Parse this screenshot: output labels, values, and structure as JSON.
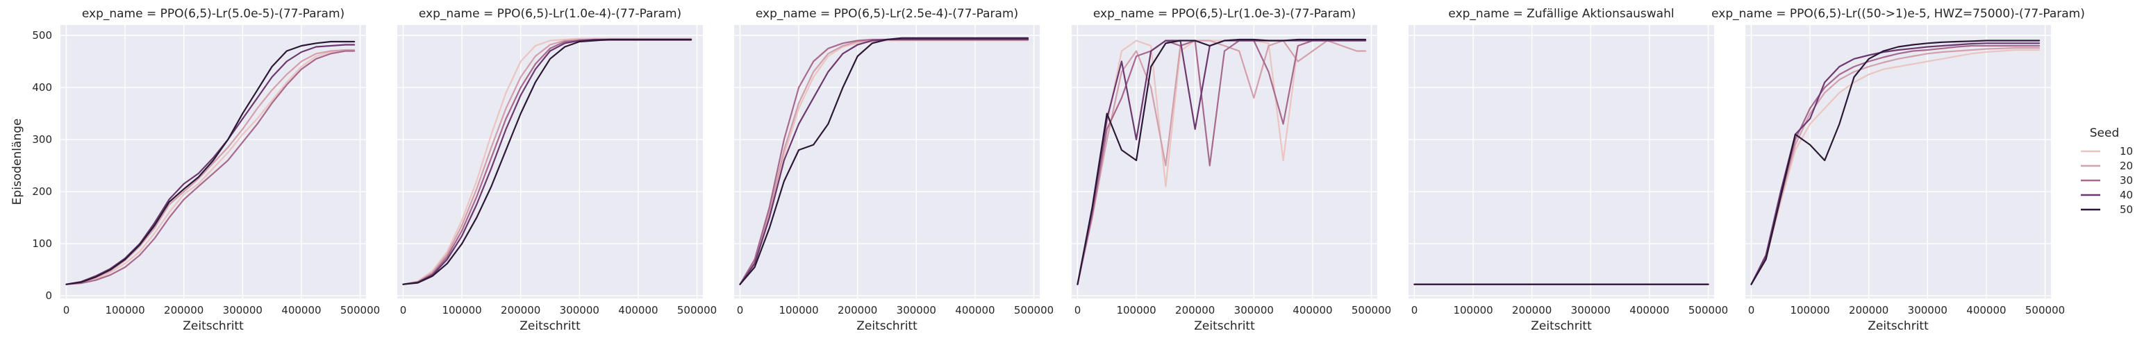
{
  "chart_data": {
    "type": "line",
    "layout": "facet-row",
    "grid": true,
    "legend_placement": "right",
    "xlabel": "Zeitschritt",
    "ylabel": "Episodenlänge",
    "xlim": [
      -10000,
      510000
    ],
    "ylim": [
      -5,
      520
    ],
    "xticks": [
      0,
      100000,
      200000,
      300000,
      400000,
      500000
    ],
    "yticks": [
      0,
      100,
      200,
      300,
      400,
      500
    ],
    "legend": {
      "title": "Seed",
      "entries": [
        {
          "label": "10",
          "color": "#ebc5c2"
        },
        {
          "label": "20",
          "color": "#d2a0ad"
        },
        {
          "label": "30",
          "color": "#a8698e"
        },
        {
          "label": "40",
          "color": "#6c3870"
        },
        {
          "label": "50",
          "color": "#2b1836"
        }
      ]
    },
    "panels": [
      {
        "title": "exp_name = PPO(6,5)-Lr(5.0e-5)-(77-Param)",
        "x": [
          0,
          25000,
          50000,
          75000,
          100000,
          125000,
          150000,
          175000,
          200000,
          225000,
          250000,
          275000,
          300000,
          325000,
          350000,
          375000,
          400000,
          425000,
          450000,
          475000,
          490000
        ],
        "series": [
          {
            "name": "10",
            "values": [
              22,
              25,
              32,
              45,
              62,
              85,
              120,
              160,
              195,
              215,
              245,
              275,
              310,
              340,
              375,
              410,
              440,
              460,
              468,
              470,
              470
            ]
          },
          {
            "name": "20",
            "values": [
              22,
              26,
              35,
              48,
              68,
              95,
              130,
              175,
              200,
              225,
              255,
              285,
              320,
              360,
              395,
              425,
              450,
              465,
              470,
              472,
              472
            ]
          },
          {
            "name": "30",
            "values": [
              22,
              24,
              30,
              40,
              55,
              78,
              110,
              150,
              185,
              210,
              235,
              260,
              295,
              330,
              370,
              405,
              435,
              455,
              465,
              470,
              470
            ]
          },
          {
            "name": "40",
            "values": [
              22,
              27,
              38,
              52,
              72,
              100,
              140,
              185,
              215,
              235,
              265,
              300,
              340,
              380,
              420,
              450,
              468,
              478,
              480,
              482,
              482
            ]
          },
          {
            "name": "50",
            "values": [
              22,
              26,
              36,
              50,
              70,
              98,
              135,
              180,
              205,
              228,
              260,
              300,
              350,
              395,
              440,
              470,
              480,
              485,
              488,
              488,
              488
            ]
          }
        ]
      },
      {
        "title": "exp_name = PPO(6,5)-Lr(1.0e-4)-(77-Param)",
        "x": [
          0,
          25000,
          50000,
          75000,
          100000,
          125000,
          150000,
          175000,
          200000,
          225000,
          250000,
          275000,
          300000,
          325000,
          350000,
          375000,
          400000,
          425000,
          450000,
          475000,
          490000
        ],
        "series": [
          {
            "name": "10",
            "values": [
              22,
              28,
              48,
              85,
              145,
              220,
              310,
              390,
              450,
              480,
              490,
              492,
              494,
              494,
              494,
              494,
              494,
              494,
              494,
              494,
              494
            ]
          },
          {
            "name": "20",
            "values": [
              22,
              27,
              45,
              80,
              135,
              205,
              285,
              360,
              420,
              460,
              482,
              490,
              492,
              492,
              493,
              493,
              493,
              493,
              493,
              493,
              493
            ]
          },
          {
            "name": "30",
            "values": [
              22,
              26,
              42,
              75,
              125,
              190,
              265,
              340,
              400,
              445,
              475,
              488,
              490,
              491,
              491,
              491,
              491,
              491,
              491,
              491,
              491
            ]
          },
          {
            "name": "40",
            "values": [
              22,
              26,
              40,
              70,
              115,
              175,
              245,
              320,
              385,
              435,
              470,
              485,
              490,
              492,
              492,
              492,
              492,
              492,
              492,
              492,
              492
            ]
          },
          {
            "name": "50",
            "values": [
              22,
              25,
              38,
              62,
              100,
              150,
              210,
              280,
              350,
              410,
              455,
              478,
              488,
              490,
              492,
              492,
              492,
              492,
              492,
              492,
              492
            ]
          }
        ]
      },
      {
        "title": "exp_name = PPO(6,5)-Lr(2.5e-4)-(77-Param)",
        "x": [
          0,
          25000,
          50000,
          75000,
          100000,
          125000,
          150000,
          175000,
          200000,
          225000,
          250000,
          275000,
          300000,
          325000,
          350000,
          375000,
          400000,
          425000,
          450000,
          475000,
          490000
        ],
        "series": [
          {
            "name": "10",
            "values": [
              22,
              60,
              150,
              270,
              360,
              420,
              460,
              478,
              485,
              488,
              490,
              490,
              490,
              490,
              490,
              490,
              490,
              490,
              490,
              490,
              490
            ]
          },
          {
            "name": "20",
            "values": [
              22,
              65,
              160,
              280,
              370,
              430,
              465,
              480,
              488,
              490,
              492,
              492,
              492,
              492,
              492,
              492,
              492,
              492,
              492,
              492,
              492
            ]
          },
          {
            "name": "30",
            "values": [
              22,
              70,
              170,
              300,
              400,
              450,
              475,
              485,
              490,
              492,
              492,
              492,
              492,
              492,
              492,
              492,
              492,
              492,
              492,
              492,
              492
            ]
          },
          {
            "name": "40",
            "values": [
              22,
              62,
              150,
              260,
              330,
              380,
              430,
              465,
              482,
              490,
              492,
              492,
              492,
              492,
              492,
              492,
              492,
              492,
              492,
              492,
              492
            ]
          },
          {
            "name": "50",
            "values": [
              22,
              55,
              130,
              220,
              280,
              290,
              330,
              400,
              460,
              485,
              492,
              495,
              495,
              495,
              495,
              495,
              495,
              495,
              495,
              495,
              495
            ]
          }
        ]
      },
      {
        "title": "exp_name = PPO(6,5)-Lr(1.0e-3)-(77-Param)",
        "x": [
          0,
          25000,
          50000,
          75000,
          100000,
          125000,
          150000,
          175000,
          200000,
          225000,
          250000,
          275000,
          300000,
          325000,
          350000,
          375000,
          400000,
          425000,
          450000,
          475000,
          490000
        ],
        "series": [
          {
            "name": "10",
            "values": [
              22,
              160,
              330,
              470,
              490,
              480,
              210,
              470,
              490,
              490,
              490,
              490,
              490,
              485,
              260,
              480,
              490,
              490,
              490,
              490,
              490
            ]
          },
          {
            "name": "20",
            "values": [
              22,
              150,
              300,
              430,
              470,
              400,
              250,
              480,
              490,
              490,
              480,
              470,
              380,
              480,
              490,
              450,
              470,
              490,
              480,
              470,
              470
            ]
          },
          {
            "name": "30",
            "values": [
              22,
              155,
              320,
              380,
              460,
              470,
              490,
              480,
              490,
              250,
              470,
              490,
              490,
              430,
              330,
              480,
              490,
              490,
              490,
              490,
              490
            ]
          },
          {
            "name": "40",
            "values": [
              22,
              165,
              340,
              450,
              300,
              470,
              490,
              490,
              320,
              480,
              490,
              490,
              490,
              490,
              490,
              490,
              490,
              490,
              490,
              490,
              490
            ]
          },
          {
            "name": "50",
            "values": [
              22,
              170,
              350,
              280,
              260,
              440,
              485,
              490,
              490,
              480,
              490,
              492,
              492,
              490,
              490,
              492,
              492,
              492,
              492,
              492,
              492
            ]
          }
        ]
      },
      {
        "title": "exp_name = Zufällige Aktionsauswahl",
        "x": [
          0,
          25000,
          50000,
          75000,
          100000,
          125000,
          150000,
          175000,
          200000,
          225000,
          250000,
          275000,
          300000,
          325000,
          350000,
          375000,
          400000,
          425000,
          450000,
          475000,
          500000
        ],
        "series": [
          {
            "name": "10",
            "values": [
              22,
              22,
              22,
              22,
              22,
              22,
              22,
              22,
              22,
              22,
              22,
              22,
              22,
              22,
              22,
              22,
              22,
              22,
              22,
              22,
              22
            ]
          },
          {
            "name": "20",
            "values": [
              22,
              22,
              22,
              22,
              22,
              22,
              22,
              22,
              22,
              22,
              22,
              22,
              22,
              22,
              22,
              22,
              22,
              22,
              22,
              22,
              22
            ]
          },
          {
            "name": "30",
            "values": [
              22,
              22,
              22,
              22,
              22,
              22,
              22,
              22,
              22,
              22,
              22,
              22,
              22,
              22,
              22,
              22,
              22,
              22,
              22,
              22,
              22
            ]
          },
          {
            "name": "40",
            "values": [
              22,
              22,
              22,
              22,
              22,
              22,
              22,
              22,
              22,
              22,
              22,
              22,
              22,
              22,
              22,
              22,
              22,
              22,
              22,
              22,
              22
            ]
          },
          {
            "name": "50",
            "values": [
              22,
              22,
              22,
              22,
              22,
              22,
              22,
              22,
              22,
              22,
              22,
              22,
              22,
              22,
              22,
              22,
              22,
              22,
              22,
              22,
              22
            ]
          }
        ]
      },
      {
        "title": "exp_name = PPO(6,5)-Lr((50->1)e-5, HWZ=75000)-(77-Param)",
        "x": [
          0,
          25000,
          50000,
          75000,
          100000,
          125000,
          150000,
          175000,
          200000,
          225000,
          250000,
          275000,
          300000,
          325000,
          350000,
          375000,
          400000,
          425000,
          450000,
          475000,
          490000
        ],
        "series": [
          {
            "name": "10",
            "values": [
              22,
              70,
              180,
              280,
              330,
              360,
              390,
              410,
              425,
              435,
              440,
              445,
              450,
              455,
              460,
              465,
              468,
              470,
              472,
              472,
              472
            ]
          },
          {
            "name": "20",
            "values": [
              22,
              72,
              185,
              290,
              350,
              390,
              415,
              430,
              440,
              448,
              455,
              460,
              465,
              468,
              470,
              472,
              474,
              475,
              476,
              476,
              476
            ]
          },
          {
            "name": "30",
            "values": [
              22,
              75,
              190,
              300,
              360,
              400,
              425,
              440,
              450,
              458,
              465,
              470,
              472,
              475,
              478,
              480,
              480,
              480,
              480,
              480,
              480
            ]
          },
          {
            "name": "40",
            "values": [
              22,
              78,
              200,
              310,
              340,
              410,
              440,
              455,
              462,
              468,
              472,
              475,
              478,
              480,
              482,
              484,
              485,
              485,
              485,
              485,
              485
            ]
          },
          {
            "name": "50",
            "values": [
              22,
              70,
              190,
              310,
              290,
              260,
              330,
              420,
              455,
              470,
              478,
              482,
              485,
              487,
              488,
              489,
              490,
              490,
              490,
              490,
              490
            ]
          }
        ]
      }
    ]
  }
}
